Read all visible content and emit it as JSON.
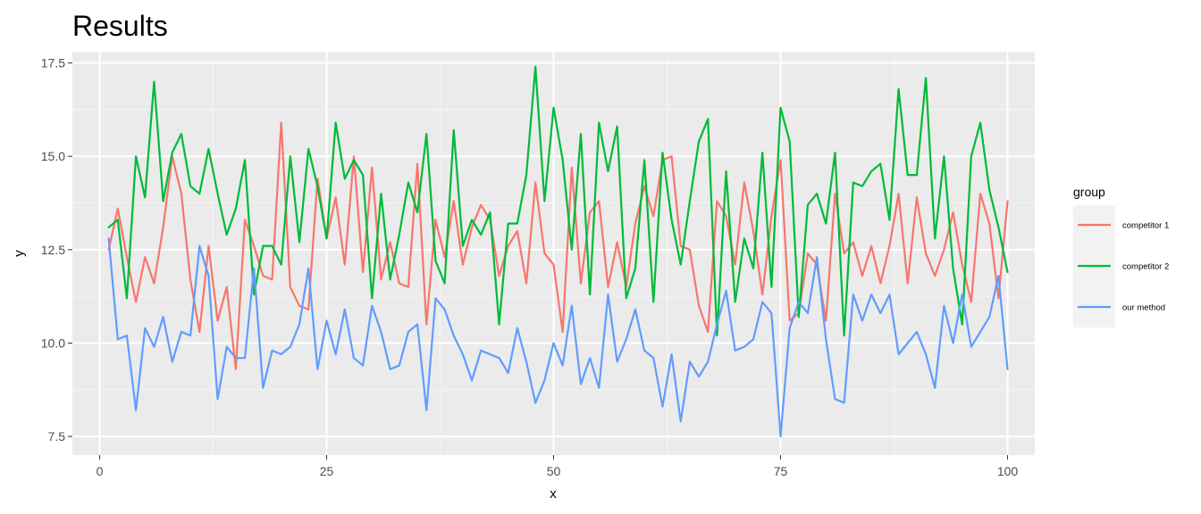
{
  "chart_data": {
    "type": "line",
    "title": "Results",
    "xlabel": "x",
    "ylabel": "y",
    "xlim": [
      -3,
      103
    ],
    "ylim": [
      7.0,
      17.8
    ],
    "x_ticks": [
      0,
      25,
      50,
      75,
      100
    ],
    "x_tick_labels": [
      "0",
      "25",
      "50",
      "75",
      "100"
    ],
    "y_ticks": [
      7.5,
      10.0,
      12.5,
      15.0,
      17.5
    ],
    "y_tick_labels": [
      "7.5",
      "10.0",
      "12.5",
      "15.0",
      "17.5"
    ],
    "grid": true,
    "legend": {
      "title": "group",
      "position": "right"
    },
    "x": [
      1,
      2,
      3,
      4,
      5,
      6,
      7,
      8,
      9,
      10,
      11,
      12,
      13,
      14,
      15,
      16,
      17,
      18,
      19,
      20,
      21,
      22,
      23,
      24,
      25,
      26,
      27,
      28,
      29,
      30,
      31,
      32,
      33,
      34,
      35,
      36,
      37,
      38,
      39,
      40,
      41,
      42,
      43,
      44,
      45,
      46,
      47,
      48,
      49,
      50,
      51,
      52,
      53,
      54,
      55,
      56,
      57,
      58,
      59,
      60,
      61,
      62,
      63,
      64,
      65,
      66,
      67,
      68,
      69,
      70,
      71,
      72,
      73,
      74,
      75,
      76,
      77,
      78,
      79,
      80,
      81,
      82,
      83,
      84,
      85,
      86,
      87,
      88,
      89,
      90,
      91,
      92,
      93,
      94,
      95,
      96,
      97,
      98,
      99,
      100
    ],
    "series": [
      {
        "name": "competitor 1",
        "color": "#F8766D",
        "values": [
          12.5,
          13.6,
          12.3,
          11.1,
          12.3,
          11.6,
          13.1,
          15.0,
          14.0,
          11.7,
          10.3,
          12.6,
          10.6,
          11.5,
          9.3,
          13.3,
          12.6,
          11.8,
          11.7,
          15.9,
          11.5,
          11.0,
          10.9,
          14.4,
          12.8,
          13.9,
          12.1,
          15.0,
          11.9,
          14.7,
          11.7,
          12.7,
          11.6,
          11.5,
          14.8,
          10.5,
          13.3,
          12.3,
          13.8,
          12.1,
          13.1,
          13.7,
          13.3,
          11.8,
          12.6,
          13.0,
          11.6,
          14.3,
          12.4,
          12.1,
          10.3,
          14.7,
          11.6,
          13.5,
          13.8,
          11.5,
          12.7,
          11.5,
          13.2,
          14.2,
          13.4,
          14.9,
          15.0,
          12.6,
          12.5,
          11.0,
          10.3,
          13.8,
          13.4,
          12.1,
          14.3,
          13.0,
          11.3,
          13.4,
          14.9,
          10.6,
          10.8,
          12.4,
          12.1,
          10.6,
          14.0,
          12.4,
          12.7,
          11.8,
          12.6,
          11.6,
          12.6,
          14.0,
          11.6,
          13.9,
          12.4,
          11.8,
          12.5,
          13.5,
          12.1,
          11.1,
          14.0,
          13.2,
          11.2,
          13.8
        ]
      },
      {
        "name": "competitor 2",
        "color": "#00BA38",
        "values": [
          13.1,
          13.3,
          11.2,
          15.0,
          13.9,
          17.0,
          13.8,
          15.1,
          15.6,
          14.2,
          14.0,
          15.2,
          14.0,
          12.9,
          13.6,
          14.9,
          11.3,
          12.6,
          12.6,
          12.1,
          15.0,
          12.7,
          15.2,
          14.2,
          12.8,
          15.9,
          14.4,
          14.9,
          14.5,
          11.2,
          14.0,
          11.7,
          12.9,
          14.3,
          13.5,
          15.6,
          12.2,
          11.6,
          15.7,
          12.6,
          13.3,
          12.9,
          13.5,
          10.5,
          13.2,
          13.2,
          14.5,
          17.4,
          13.8,
          16.3,
          14.9,
          12.5,
          15.6,
          11.3,
          15.9,
          14.6,
          15.8,
          11.2,
          12.0,
          14.9,
          11.1,
          15.1,
          13.3,
          12.1,
          13.8,
          15.4,
          16.0,
          10.2,
          14.6,
          11.1,
          12.8,
          12.0,
          15.1,
          11.5,
          16.3,
          15.4,
          10.7,
          13.7,
          14.0,
          13.2,
          15.1,
          10.2,
          14.3,
          14.2,
          14.6,
          14.8,
          13.3,
          16.8,
          14.5,
          14.5,
          17.1,
          12.8,
          15.0,
          12.0,
          10.5,
          15.0,
          15.9,
          14.1,
          13.1,
          11.9
        ]
      },
      {
        "name": "our method",
        "color": "#619CFF",
        "values": [
          12.8,
          10.1,
          10.2,
          8.2,
          10.4,
          9.9,
          10.7,
          9.5,
          10.3,
          10.2,
          12.6,
          11.8,
          8.5,
          9.9,
          9.6,
          9.6,
          12.0,
          8.8,
          9.8,
          9.7,
          9.9,
          10.5,
          12.0,
          9.3,
          10.6,
          9.7,
          10.9,
          9.6,
          9.4,
          11.0,
          10.3,
          9.3,
          9.4,
          10.3,
          10.5,
          8.2,
          11.2,
          10.9,
          10.2,
          9.7,
          9.0,
          9.8,
          9.7,
          9.6,
          9.2,
          10.4,
          9.5,
          8.4,
          9.0,
          10.0,
          9.4,
          11.0,
          8.9,
          9.6,
          8.8,
          11.3,
          9.5,
          10.1,
          10.9,
          9.8,
          9.6,
          8.3,
          9.7,
          7.9,
          9.5,
          9.1,
          9.5,
          10.5,
          11.4,
          9.8,
          9.9,
          10.1,
          11.1,
          10.8,
          7.5,
          10.4,
          11.1,
          10.8,
          12.3,
          10.1,
          8.5,
          8.4,
          11.3,
          10.6,
          11.3,
          10.8,
          11.3,
          9.7,
          10.0,
          10.3,
          9.7,
          8.8,
          11.0,
          10.0,
          11.3,
          9.9,
          10.3,
          10.7,
          11.8,
          9.3
        ]
      }
    ]
  }
}
